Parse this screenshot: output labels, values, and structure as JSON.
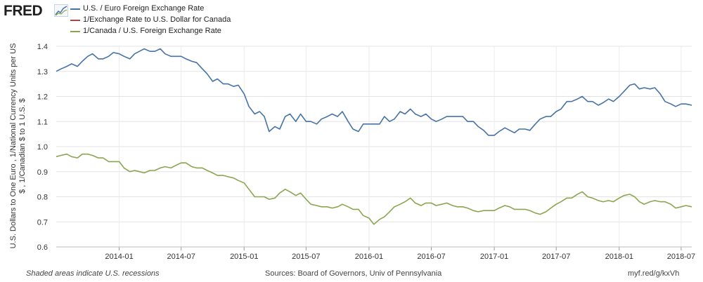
{
  "header": {
    "logo": "FRED"
  },
  "footer": {
    "recession_note": "Shaded areas indicate U.S. recessions",
    "sources": "Sources: Board of Governors, Univ of Pennsylvania",
    "short_url": "myf.red/g/kxVh"
  },
  "chart_data": {
    "type": "line",
    "title": "",
    "xlabel": "",
    "ylabel": "U.S. Dollars to One Euro , 1/National Currency Units per US $ , 1/Canadian $ to 1 U.S. $",
    "ylabel_lines": [
      "U.S. Dollars to One Euro , 1/National Currency Units per US",
      "$ , 1/Canadian $ to 1 U.S. $"
    ],
    "ylim": [
      0.6,
      1.4
    ],
    "xlim": [
      "2013-07-01",
      "2018-08-01"
    ],
    "y_ticks": [
      0.6,
      0.7,
      0.8,
      0.9,
      1.0,
      1.1,
      1.2,
      1.3,
      1.4
    ],
    "y_tick_labels": [
      "0.6",
      "0.7",
      "0.8",
      "0.9",
      "1.0",
      "1.1",
      "1.2",
      "1.3",
      "1.4"
    ],
    "x_ticks": [
      "2014-01-01",
      "2014-07-01",
      "2015-01-01",
      "2015-07-01",
      "2016-01-01",
      "2016-07-01",
      "2017-01-01",
      "2017-07-01",
      "2018-01-01",
      "2018-07-01"
    ],
    "x_tick_labels": [
      "2014-01",
      "2014-07",
      "2015-01",
      "2015-07",
      "2016-01",
      "2016-07",
      "2017-01",
      "2017-07",
      "2018-01",
      "2018-07"
    ],
    "grid": true,
    "legend": "top-left",
    "series": [
      {
        "name": "U.S. / Euro Foreign Exchange Rate",
        "color": "#4572a7",
        "points": [
          [
            "2013-07-01",
            1.3
          ],
          [
            "2013-07-15",
            1.31
          ],
          [
            "2013-08-01",
            1.32
          ],
          [
            "2013-08-15",
            1.33
          ],
          [
            "2013-09-01",
            1.32
          ],
          [
            "2013-09-15",
            1.34
          ],
          [
            "2013-10-01",
            1.36
          ],
          [
            "2013-10-15",
            1.37
          ],
          [
            "2013-11-01",
            1.35
          ],
          [
            "2013-11-15",
            1.35
          ],
          [
            "2013-12-01",
            1.36
          ],
          [
            "2013-12-15",
            1.375
          ],
          [
            "2014-01-01",
            1.37
          ],
          [
            "2014-01-15",
            1.36
          ],
          [
            "2014-02-01",
            1.35
          ],
          [
            "2014-02-15",
            1.37
          ],
          [
            "2014-03-01",
            1.38
          ],
          [
            "2014-03-15",
            1.39
          ],
          [
            "2014-04-01",
            1.38
          ],
          [
            "2014-04-15",
            1.38
          ],
          [
            "2014-05-01",
            1.39
          ],
          [
            "2014-05-15",
            1.37
          ],
          [
            "2014-06-01",
            1.36
          ],
          [
            "2014-06-15",
            1.36
          ],
          [
            "2014-07-01",
            1.36
          ],
          [
            "2014-07-15",
            1.35
          ],
          [
            "2014-08-01",
            1.34
          ],
          [
            "2014-08-15",
            1.335
          ],
          [
            "2014-09-01",
            1.31
          ],
          [
            "2014-09-15",
            1.29
          ],
          [
            "2014-10-01",
            1.26
          ],
          [
            "2014-10-15",
            1.27
          ],
          [
            "2014-11-01",
            1.25
          ],
          [
            "2014-11-15",
            1.25
          ],
          [
            "2014-12-01",
            1.24
          ],
          [
            "2014-12-15",
            1.245
          ],
          [
            "2015-01-01",
            1.21
          ],
          [
            "2015-01-15",
            1.16
          ],
          [
            "2015-02-01",
            1.13
          ],
          [
            "2015-02-15",
            1.14
          ],
          [
            "2015-03-01",
            1.12
          ],
          [
            "2015-03-15",
            1.06
          ],
          [
            "2015-04-01",
            1.08
          ],
          [
            "2015-04-15",
            1.07
          ],
          [
            "2015-05-01",
            1.12
          ],
          [
            "2015-05-15",
            1.13
          ],
          [
            "2015-06-01",
            1.1
          ],
          [
            "2015-06-15",
            1.13
          ],
          [
            "2015-07-01",
            1.1
          ],
          [
            "2015-07-15",
            1.1
          ],
          [
            "2015-08-01",
            1.09
          ],
          [
            "2015-08-15",
            1.11
          ],
          [
            "2015-09-01",
            1.12
          ],
          [
            "2015-09-15",
            1.13
          ],
          [
            "2015-10-01",
            1.12
          ],
          [
            "2015-10-15",
            1.14
          ],
          [
            "2015-11-01",
            1.1
          ],
          [
            "2015-11-15",
            1.07
          ],
          [
            "2015-12-01",
            1.06
          ],
          [
            "2015-12-15",
            1.09
          ],
          [
            "2016-01-01",
            1.09
          ],
          [
            "2016-01-15",
            1.09
          ],
          [
            "2016-02-01",
            1.09
          ],
          [
            "2016-02-15",
            1.12
          ],
          [
            "2016-03-01",
            1.1
          ],
          [
            "2016-03-15",
            1.11
          ],
          [
            "2016-04-01",
            1.14
          ],
          [
            "2016-04-15",
            1.13
          ],
          [
            "2016-05-01",
            1.15
          ],
          [
            "2016-05-15",
            1.13
          ],
          [
            "2016-06-01",
            1.12
          ],
          [
            "2016-06-15",
            1.13
          ],
          [
            "2016-07-01",
            1.11
          ],
          [
            "2016-07-15",
            1.1
          ],
          [
            "2016-08-01",
            1.11
          ],
          [
            "2016-08-15",
            1.12
          ],
          [
            "2016-09-01",
            1.12
          ],
          [
            "2016-09-15",
            1.12
          ],
          [
            "2016-10-01",
            1.12
          ],
          [
            "2016-10-15",
            1.1
          ],
          [
            "2016-11-01",
            1.1
          ],
          [
            "2016-11-15",
            1.08
          ],
          [
            "2016-12-01",
            1.065
          ],
          [
            "2016-12-15",
            1.045
          ],
          [
            "2017-01-01",
            1.045
          ],
          [
            "2017-01-15",
            1.06
          ],
          [
            "2017-02-01",
            1.075
          ],
          [
            "2017-02-15",
            1.065
          ],
          [
            "2017-03-01",
            1.055
          ],
          [
            "2017-03-15",
            1.07
          ],
          [
            "2017-04-01",
            1.07
          ],
          [
            "2017-04-15",
            1.065
          ],
          [
            "2017-05-01",
            1.09
          ],
          [
            "2017-05-15",
            1.11
          ],
          [
            "2017-06-01",
            1.12
          ],
          [
            "2017-06-15",
            1.12
          ],
          [
            "2017-07-01",
            1.14
          ],
          [
            "2017-07-15",
            1.15
          ],
          [
            "2017-08-01",
            1.18
          ],
          [
            "2017-08-15",
            1.18
          ],
          [
            "2017-09-01",
            1.19
          ],
          [
            "2017-09-15",
            1.2
          ],
          [
            "2017-10-01",
            1.18
          ],
          [
            "2017-10-15",
            1.18
          ],
          [
            "2017-11-01",
            1.165
          ],
          [
            "2017-11-15",
            1.175
          ],
          [
            "2017-12-01",
            1.19
          ],
          [
            "2017-12-15",
            1.18
          ],
          [
            "2018-01-01",
            1.2
          ],
          [
            "2018-01-15",
            1.22
          ],
          [
            "2018-02-01",
            1.245
          ],
          [
            "2018-02-15",
            1.25
          ],
          [
            "2018-03-01",
            1.23
          ],
          [
            "2018-03-15",
            1.235
          ],
          [
            "2018-04-01",
            1.23
          ],
          [
            "2018-04-15",
            1.235
          ],
          [
            "2018-05-01",
            1.21
          ],
          [
            "2018-05-15",
            1.18
          ],
          [
            "2018-06-01",
            1.17
          ],
          [
            "2018-06-15",
            1.16
          ],
          [
            "2018-07-01",
            1.17
          ],
          [
            "2018-07-15",
            1.17
          ],
          [
            "2018-08-01",
            1.165
          ]
        ]
      },
      {
        "name": "1/Exchange Rate to U.S. Dollar for Canada",
        "color": "#aa4643",
        "points": []
      },
      {
        "name": "1/Canada / U.S. Foreign Exchange Rate",
        "color": "#89a54e",
        "points": [
          [
            "2013-07-01",
            0.96
          ],
          [
            "2013-07-15",
            0.965
          ],
          [
            "2013-08-01",
            0.97
          ],
          [
            "2013-08-15",
            0.96
          ],
          [
            "2013-09-01",
            0.955
          ],
          [
            "2013-09-15",
            0.97
          ],
          [
            "2013-10-01",
            0.97
          ],
          [
            "2013-10-15",
            0.965
          ],
          [
            "2013-11-01",
            0.955
          ],
          [
            "2013-11-15",
            0.955
          ],
          [
            "2013-12-01",
            0.94
          ],
          [
            "2013-12-15",
            0.94
          ],
          [
            "2014-01-01",
            0.94
          ],
          [
            "2014-01-15",
            0.915
          ],
          [
            "2014-02-01",
            0.9
          ],
          [
            "2014-02-15",
            0.905
          ],
          [
            "2014-03-01",
            0.9
          ],
          [
            "2014-03-15",
            0.895
          ],
          [
            "2014-04-01",
            0.905
          ],
          [
            "2014-04-15",
            0.905
          ],
          [
            "2014-05-01",
            0.915
          ],
          [
            "2014-05-15",
            0.92
          ],
          [
            "2014-06-01",
            0.915
          ],
          [
            "2014-06-15",
            0.925
          ],
          [
            "2014-07-01",
            0.935
          ],
          [
            "2014-07-15",
            0.935
          ],
          [
            "2014-08-01",
            0.92
          ],
          [
            "2014-08-15",
            0.915
          ],
          [
            "2014-09-01",
            0.915
          ],
          [
            "2014-09-15",
            0.905
          ],
          [
            "2014-10-01",
            0.895
          ],
          [
            "2014-10-15",
            0.885
          ],
          [
            "2014-11-01",
            0.885
          ],
          [
            "2014-11-15",
            0.88
          ],
          [
            "2014-12-01",
            0.875
          ],
          [
            "2014-12-15",
            0.865
          ],
          [
            "2015-01-01",
            0.855
          ],
          [
            "2015-01-15",
            0.83
          ],
          [
            "2015-02-01",
            0.8
          ],
          [
            "2015-02-15",
            0.8
          ],
          [
            "2015-03-01",
            0.8
          ],
          [
            "2015-03-15",
            0.79
          ],
          [
            "2015-04-01",
            0.795
          ],
          [
            "2015-04-15",
            0.815
          ],
          [
            "2015-05-01",
            0.83
          ],
          [
            "2015-05-15",
            0.82
          ],
          [
            "2015-06-01",
            0.805
          ],
          [
            "2015-06-15",
            0.815
          ],
          [
            "2015-07-01",
            0.79
          ],
          [
            "2015-07-15",
            0.77
          ],
          [
            "2015-08-01",
            0.765
          ],
          [
            "2015-08-15",
            0.76
          ],
          [
            "2015-09-01",
            0.76
          ],
          [
            "2015-09-15",
            0.755
          ],
          [
            "2015-10-01",
            0.76
          ],
          [
            "2015-10-15",
            0.77
          ],
          [
            "2015-11-01",
            0.76
          ],
          [
            "2015-11-15",
            0.75
          ],
          [
            "2015-12-01",
            0.75
          ],
          [
            "2015-12-15",
            0.725
          ],
          [
            "2016-01-01",
            0.715
          ],
          [
            "2016-01-15",
            0.69
          ],
          [
            "2016-02-01",
            0.71
          ],
          [
            "2016-02-15",
            0.72
          ],
          [
            "2016-03-01",
            0.74
          ],
          [
            "2016-03-15",
            0.76
          ],
          [
            "2016-04-01",
            0.77
          ],
          [
            "2016-04-15",
            0.78
          ],
          [
            "2016-05-01",
            0.795
          ],
          [
            "2016-05-15",
            0.775
          ],
          [
            "2016-06-01",
            0.765
          ],
          [
            "2016-06-15",
            0.775
          ],
          [
            "2016-07-01",
            0.775
          ],
          [
            "2016-07-15",
            0.765
          ],
          [
            "2016-08-01",
            0.77
          ],
          [
            "2016-08-15",
            0.775
          ],
          [
            "2016-09-01",
            0.765
          ],
          [
            "2016-09-15",
            0.76
          ],
          [
            "2016-10-01",
            0.76
          ],
          [
            "2016-10-15",
            0.755
          ],
          [
            "2016-11-01",
            0.745
          ],
          [
            "2016-11-15",
            0.74
          ],
          [
            "2016-12-01",
            0.745
          ],
          [
            "2016-12-15",
            0.745
          ],
          [
            "2017-01-01",
            0.745
          ],
          [
            "2017-01-15",
            0.755
          ],
          [
            "2017-02-01",
            0.765
          ],
          [
            "2017-02-15",
            0.76
          ],
          [
            "2017-03-01",
            0.75
          ],
          [
            "2017-03-15",
            0.75
          ],
          [
            "2017-04-01",
            0.75
          ],
          [
            "2017-04-15",
            0.745
          ],
          [
            "2017-05-01",
            0.735
          ],
          [
            "2017-05-15",
            0.73
          ],
          [
            "2017-06-01",
            0.74
          ],
          [
            "2017-06-15",
            0.755
          ],
          [
            "2017-07-01",
            0.77
          ],
          [
            "2017-07-15",
            0.78
          ],
          [
            "2017-08-01",
            0.795
          ],
          [
            "2017-08-15",
            0.795
          ],
          [
            "2017-09-01",
            0.81
          ],
          [
            "2017-09-15",
            0.82
          ],
          [
            "2017-10-01",
            0.8
          ],
          [
            "2017-10-15",
            0.795
          ],
          [
            "2017-11-01",
            0.785
          ],
          [
            "2017-11-15",
            0.78
          ],
          [
            "2017-12-01",
            0.785
          ],
          [
            "2017-12-15",
            0.78
          ],
          [
            "2018-01-01",
            0.795
          ],
          [
            "2018-01-15",
            0.805
          ],
          [
            "2018-02-01",
            0.81
          ],
          [
            "2018-02-15",
            0.8
          ],
          [
            "2018-03-01",
            0.78
          ],
          [
            "2018-03-15",
            0.77
          ],
          [
            "2018-04-01",
            0.78
          ],
          [
            "2018-04-15",
            0.785
          ],
          [
            "2018-05-01",
            0.78
          ],
          [
            "2018-05-15",
            0.78
          ],
          [
            "2018-06-01",
            0.77
          ],
          [
            "2018-06-15",
            0.755
          ],
          [
            "2018-07-01",
            0.76
          ],
          [
            "2018-07-15",
            0.765
          ],
          [
            "2018-08-01",
            0.76
          ]
        ]
      }
    ]
  }
}
